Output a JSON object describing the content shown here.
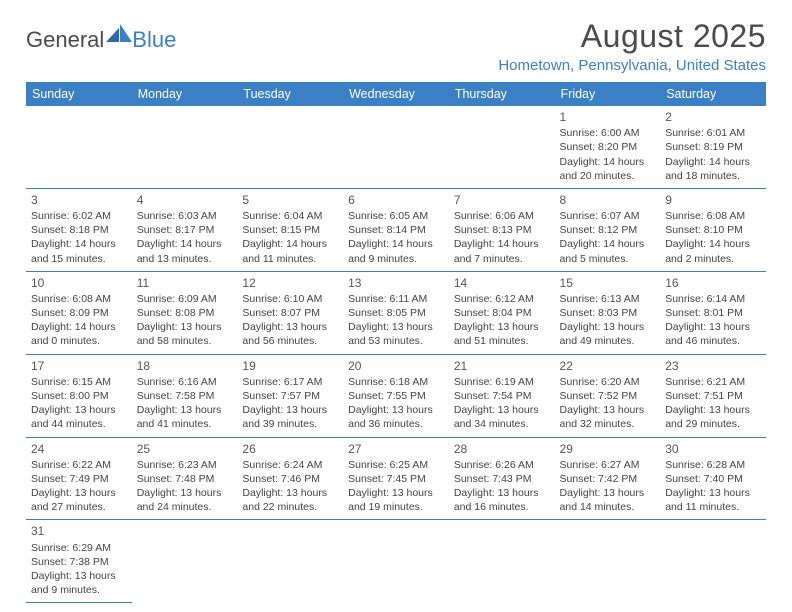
{
  "logo": {
    "text1": "General",
    "text2": "Blue"
  },
  "title": "August 2025",
  "location": "Hometown, Pennsylvania, United States",
  "colors": {
    "accent": "#3b7fc4",
    "text": "#4a4a4a",
    "cell_text": "#444444",
    "bg": "#ffffff"
  },
  "day_headers": [
    "Sunday",
    "Monday",
    "Tuesday",
    "Wednesday",
    "Thursday",
    "Friday",
    "Saturday"
  ],
  "weeks": [
    [
      null,
      null,
      null,
      null,
      null,
      {
        "n": "1",
        "sr": "Sunrise: 6:00 AM",
        "ss": "Sunset: 8:20 PM",
        "dl1": "Daylight: 14 hours",
        "dl2": "and 20 minutes."
      },
      {
        "n": "2",
        "sr": "Sunrise: 6:01 AM",
        "ss": "Sunset: 8:19 PM",
        "dl1": "Daylight: 14 hours",
        "dl2": "and 18 minutes."
      }
    ],
    [
      {
        "n": "3",
        "sr": "Sunrise: 6:02 AM",
        "ss": "Sunset: 8:18 PM",
        "dl1": "Daylight: 14 hours",
        "dl2": "and 15 minutes."
      },
      {
        "n": "4",
        "sr": "Sunrise: 6:03 AM",
        "ss": "Sunset: 8:17 PM",
        "dl1": "Daylight: 14 hours",
        "dl2": "and 13 minutes."
      },
      {
        "n": "5",
        "sr": "Sunrise: 6:04 AM",
        "ss": "Sunset: 8:15 PM",
        "dl1": "Daylight: 14 hours",
        "dl2": "and 11 minutes."
      },
      {
        "n": "6",
        "sr": "Sunrise: 6:05 AM",
        "ss": "Sunset: 8:14 PM",
        "dl1": "Daylight: 14 hours",
        "dl2": "and 9 minutes."
      },
      {
        "n": "7",
        "sr": "Sunrise: 6:06 AM",
        "ss": "Sunset: 8:13 PM",
        "dl1": "Daylight: 14 hours",
        "dl2": "and 7 minutes."
      },
      {
        "n": "8",
        "sr": "Sunrise: 6:07 AM",
        "ss": "Sunset: 8:12 PM",
        "dl1": "Daylight: 14 hours",
        "dl2": "and 5 minutes."
      },
      {
        "n": "9",
        "sr": "Sunrise: 6:08 AM",
        "ss": "Sunset: 8:10 PM",
        "dl1": "Daylight: 14 hours",
        "dl2": "and 2 minutes."
      }
    ],
    [
      {
        "n": "10",
        "sr": "Sunrise: 6:08 AM",
        "ss": "Sunset: 8:09 PM",
        "dl1": "Daylight: 14 hours",
        "dl2": "and 0 minutes."
      },
      {
        "n": "11",
        "sr": "Sunrise: 6:09 AM",
        "ss": "Sunset: 8:08 PM",
        "dl1": "Daylight: 13 hours",
        "dl2": "and 58 minutes."
      },
      {
        "n": "12",
        "sr": "Sunrise: 6:10 AM",
        "ss": "Sunset: 8:07 PM",
        "dl1": "Daylight: 13 hours",
        "dl2": "and 56 minutes."
      },
      {
        "n": "13",
        "sr": "Sunrise: 6:11 AM",
        "ss": "Sunset: 8:05 PM",
        "dl1": "Daylight: 13 hours",
        "dl2": "and 53 minutes."
      },
      {
        "n": "14",
        "sr": "Sunrise: 6:12 AM",
        "ss": "Sunset: 8:04 PM",
        "dl1": "Daylight: 13 hours",
        "dl2": "and 51 minutes."
      },
      {
        "n": "15",
        "sr": "Sunrise: 6:13 AM",
        "ss": "Sunset: 8:03 PM",
        "dl1": "Daylight: 13 hours",
        "dl2": "and 49 minutes."
      },
      {
        "n": "16",
        "sr": "Sunrise: 6:14 AM",
        "ss": "Sunset: 8:01 PM",
        "dl1": "Daylight: 13 hours",
        "dl2": "and 46 minutes."
      }
    ],
    [
      {
        "n": "17",
        "sr": "Sunrise: 6:15 AM",
        "ss": "Sunset: 8:00 PM",
        "dl1": "Daylight: 13 hours",
        "dl2": "and 44 minutes."
      },
      {
        "n": "18",
        "sr": "Sunrise: 6:16 AM",
        "ss": "Sunset: 7:58 PM",
        "dl1": "Daylight: 13 hours",
        "dl2": "and 41 minutes."
      },
      {
        "n": "19",
        "sr": "Sunrise: 6:17 AM",
        "ss": "Sunset: 7:57 PM",
        "dl1": "Daylight: 13 hours",
        "dl2": "and 39 minutes."
      },
      {
        "n": "20",
        "sr": "Sunrise: 6:18 AM",
        "ss": "Sunset: 7:55 PM",
        "dl1": "Daylight: 13 hours",
        "dl2": "and 36 minutes."
      },
      {
        "n": "21",
        "sr": "Sunrise: 6:19 AM",
        "ss": "Sunset: 7:54 PM",
        "dl1": "Daylight: 13 hours",
        "dl2": "and 34 minutes."
      },
      {
        "n": "22",
        "sr": "Sunrise: 6:20 AM",
        "ss": "Sunset: 7:52 PM",
        "dl1": "Daylight: 13 hours",
        "dl2": "and 32 minutes."
      },
      {
        "n": "23",
        "sr": "Sunrise: 6:21 AM",
        "ss": "Sunset: 7:51 PM",
        "dl1": "Daylight: 13 hours",
        "dl2": "and 29 minutes."
      }
    ],
    [
      {
        "n": "24",
        "sr": "Sunrise: 6:22 AM",
        "ss": "Sunset: 7:49 PM",
        "dl1": "Daylight: 13 hours",
        "dl2": "and 27 minutes."
      },
      {
        "n": "25",
        "sr": "Sunrise: 6:23 AM",
        "ss": "Sunset: 7:48 PM",
        "dl1": "Daylight: 13 hours",
        "dl2": "and 24 minutes."
      },
      {
        "n": "26",
        "sr": "Sunrise: 6:24 AM",
        "ss": "Sunset: 7:46 PM",
        "dl1": "Daylight: 13 hours",
        "dl2": "and 22 minutes."
      },
      {
        "n": "27",
        "sr": "Sunrise: 6:25 AM",
        "ss": "Sunset: 7:45 PM",
        "dl1": "Daylight: 13 hours",
        "dl2": "and 19 minutes."
      },
      {
        "n": "28",
        "sr": "Sunrise: 6:26 AM",
        "ss": "Sunset: 7:43 PM",
        "dl1": "Daylight: 13 hours",
        "dl2": "and 16 minutes."
      },
      {
        "n": "29",
        "sr": "Sunrise: 6:27 AM",
        "ss": "Sunset: 7:42 PM",
        "dl1": "Daylight: 13 hours",
        "dl2": "and 14 minutes."
      },
      {
        "n": "30",
        "sr": "Sunrise: 6:28 AM",
        "ss": "Sunset: 7:40 PM",
        "dl1": "Daylight: 13 hours",
        "dl2": "and 11 minutes."
      }
    ],
    [
      {
        "n": "31",
        "sr": "Sunrise: 6:29 AM",
        "ss": "Sunset: 7:38 PM",
        "dl1": "Daylight: 13 hours",
        "dl2": "and 9 minutes."
      },
      null,
      null,
      null,
      null,
      null,
      null
    ]
  ]
}
